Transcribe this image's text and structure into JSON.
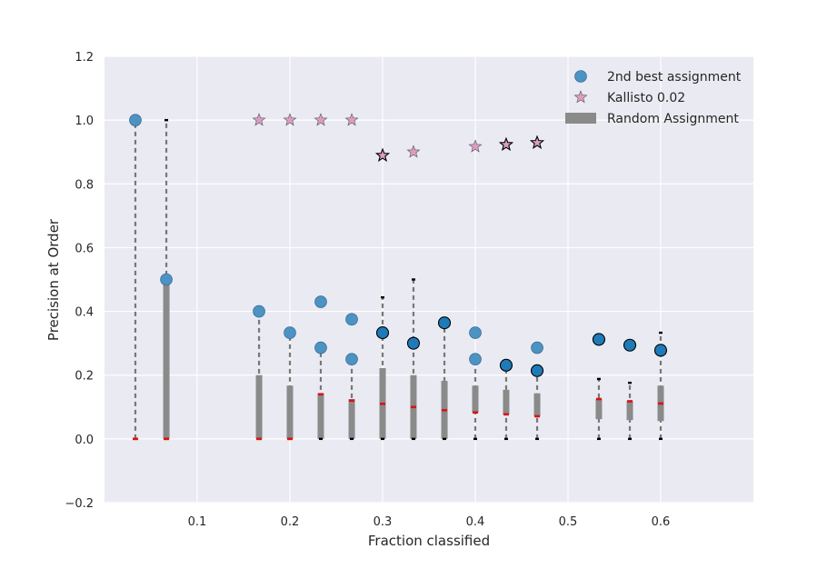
{
  "colors": {
    "plot_background": "#eaeaf2",
    "grid": "#ffffff",
    "circle_marker": "#4c92c3",
    "circle_highlight": "#1f7ab8",
    "star_marker": "#dc9dc3",
    "random_bar": "#8a8a8a",
    "dashed_line": "#777777",
    "red_tick": "#dd1111",
    "black_tick": "#000000"
  },
  "chart_data": {
    "type": "scatter",
    "title": "",
    "xlabel": "Fraction classified",
    "ylabel": "Precision at Order",
    "xlim": [
      0.0,
      0.7
    ],
    "ylim": [
      -0.2,
      1.2
    ],
    "xticks": [
      0.1,
      0.2,
      0.3,
      0.4,
      0.5,
      0.6
    ],
    "xtick_labels": [
      "0.1",
      "0.2",
      "0.3",
      "0.4",
      "0.5",
      "0.6"
    ],
    "yticks": [
      -0.2,
      0.0,
      0.2,
      0.4,
      0.6,
      0.8,
      1.0,
      1.2
    ],
    "ytick_labels": [
      "−0.2",
      "0.0",
      "0.2",
      "0.4",
      "0.6",
      "0.8",
      "1.0",
      "1.2"
    ],
    "grid": true,
    "legend_position": "top-right",
    "legend": [
      {
        "label": "2nd best assignment",
        "marker": "circle"
      },
      {
        "label": "Kallisto 0.02",
        "marker": "star"
      },
      {
        "label": "Random Assignment",
        "marker": "bar"
      }
    ],
    "circles": [
      {
        "x": 0.0333,
        "y": 1.0,
        "highlight": false
      },
      {
        "x": 0.0667,
        "y": 0.5,
        "highlight": false
      },
      {
        "x": 0.1667,
        "y": 0.4,
        "highlight": false
      },
      {
        "x": 0.2,
        "y": 0.333,
        "highlight": false
      },
      {
        "x": 0.2333,
        "y": 0.43,
        "highlight": false
      },
      {
        "x": 0.2333,
        "y": 0.286,
        "highlight": false
      },
      {
        "x": 0.2667,
        "y": 0.375,
        "highlight": false
      },
      {
        "x": 0.2667,
        "y": 0.25,
        "highlight": false
      },
      {
        "x": 0.3,
        "y": 0.333,
        "highlight": true
      },
      {
        "x": 0.3333,
        "y": 0.3,
        "highlight": true
      },
      {
        "x": 0.3667,
        "y": 0.364,
        "highlight": true
      },
      {
        "x": 0.4,
        "y": 0.333,
        "highlight": false
      },
      {
        "x": 0.4,
        "y": 0.25,
        "highlight": false
      },
      {
        "x": 0.4333,
        "y": 0.231,
        "highlight": true
      },
      {
        "x": 0.4667,
        "y": 0.286,
        "highlight": false
      },
      {
        "x": 0.4667,
        "y": 0.214,
        "highlight": true
      },
      {
        "x": 0.5333,
        "y": 0.312,
        "highlight": true
      },
      {
        "x": 0.5667,
        "y": 0.294,
        "highlight": true
      },
      {
        "x": 0.6,
        "y": 0.278,
        "highlight": true
      }
    ],
    "stars": [
      {
        "x": 0.1667,
        "y": 1.0,
        "highlight": false
      },
      {
        "x": 0.2,
        "y": 1.0,
        "highlight": false
      },
      {
        "x": 0.2333,
        "y": 1.0,
        "highlight": false
      },
      {
        "x": 0.2667,
        "y": 1.0,
        "highlight": false
      },
      {
        "x": 0.3,
        "y": 0.889,
        "highlight": true
      },
      {
        "x": 0.3333,
        "y": 0.9,
        "highlight": false
      },
      {
        "x": 0.4,
        "y": 0.917,
        "highlight": false
      },
      {
        "x": 0.4333,
        "y": 0.923,
        "highlight": true
      },
      {
        "x": 0.4667,
        "y": 0.929,
        "highlight": true
      }
    ],
    "random_assignment": [
      {
        "x": 0.0333,
        "bar_low": 0.0,
        "bar_high": 0.0,
        "median": 0.0,
        "max": 1.0
      },
      {
        "x": 0.0667,
        "bar_low": 0.0,
        "bar_high": 0.5,
        "median": 0.0,
        "max": 1.0
      },
      {
        "x": 0.1667,
        "bar_low": 0.0,
        "bar_high": 0.2,
        "median": 0.0,
        "max": 0.4
      },
      {
        "x": 0.2,
        "bar_low": 0.0,
        "bar_high": 0.167,
        "median": 0.0,
        "max": 0.333
      },
      {
        "x": 0.2333,
        "bar_low": 0.0,
        "bar_high": 0.143,
        "median": 0.14,
        "max": 0.286
      },
      {
        "x": 0.2667,
        "bar_low": 0.0,
        "bar_high": 0.125,
        "median": 0.12,
        "max": 0.25
      },
      {
        "x": 0.3,
        "bar_low": 0.0,
        "bar_high": 0.222,
        "median": 0.11,
        "max": 0.444
      },
      {
        "x": 0.3333,
        "bar_low": 0.0,
        "bar_high": 0.2,
        "median": 0.1,
        "max": 0.5
      },
      {
        "x": 0.3667,
        "bar_low": 0.0,
        "bar_high": 0.182,
        "median": 0.09,
        "max": 0.364
      },
      {
        "x": 0.4,
        "bar_low": 0.083,
        "bar_high": 0.167,
        "median": 0.083,
        "max": 0.25
      },
      {
        "x": 0.4333,
        "bar_low": 0.077,
        "bar_high": 0.154,
        "median": 0.077,
        "max": 0.231
      },
      {
        "x": 0.4667,
        "bar_low": 0.071,
        "bar_high": 0.143,
        "median": 0.071,
        "max": 0.214
      },
      {
        "x": 0.5333,
        "bar_low": 0.062,
        "bar_high": 0.125,
        "median": 0.125,
        "max": 0.188
      },
      {
        "x": 0.5667,
        "bar_low": 0.059,
        "bar_high": 0.118,
        "median": 0.118,
        "max": 0.176
      },
      {
        "x": 0.6,
        "bar_low": 0.056,
        "bar_high": 0.167,
        "median": 0.111,
        "max": 0.333
      }
    ]
  }
}
